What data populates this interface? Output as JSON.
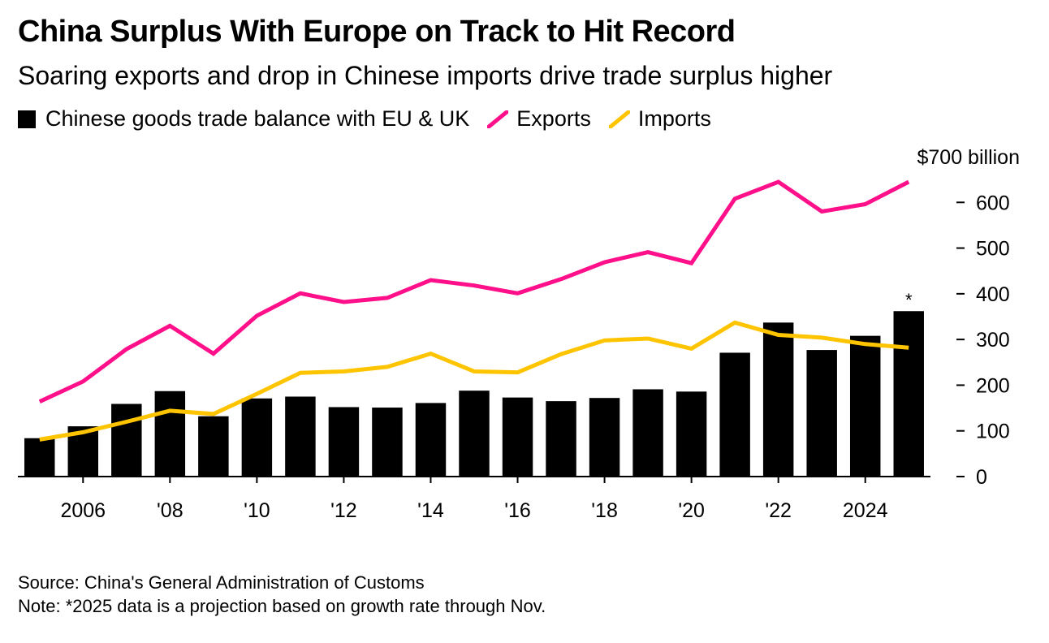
{
  "header": {
    "title": "China Surplus With Europe on Track to Hit Record",
    "subtitle": "Soaring exports and drop in Chinese imports drive trade surplus higher"
  },
  "legend": {
    "balance": "Chinese goods trade balance with EU & UK",
    "exports": "Exports",
    "imports": "Imports"
  },
  "colors": {
    "balance": "#000000",
    "exports": "#ff0f8a",
    "imports": "#ffc400"
  },
  "footer": {
    "source": "Source: China's General Administration of Customs",
    "note": "Note: *2025 data is a projection based on growth rate through Nov."
  },
  "chart_data": {
    "type": "bar",
    "title": "China Surplus With Europe on Track to Hit Record",
    "subtitle": "Soaring exports and drop in Chinese imports drive trade surplus higher",
    "x": [
      2005,
      2006,
      2007,
      2008,
      2009,
      2010,
      2011,
      2012,
      2013,
      2014,
      2015,
      2016,
      2017,
      2018,
      2019,
      2020,
      2021,
      2022,
      2023,
      2024,
      2025
    ],
    "x_tick_labels": [
      {
        "year": 2006,
        "label": "2006"
      },
      {
        "year": 2008,
        "label": "'08"
      },
      {
        "year": 2010,
        "label": "'10"
      },
      {
        "year": 2012,
        "label": "'12"
      },
      {
        "year": 2014,
        "label": "'14"
      },
      {
        "year": 2016,
        "label": "'16"
      },
      {
        "year": 2018,
        "label": "'18"
      },
      {
        "year": 2020,
        "label": "'20"
      },
      {
        "year": 2022,
        "label": "'22"
      },
      {
        "year": 2024,
        "label": "2024"
      }
    ],
    "y_tick_labels": [
      {
        "value": 0,
        "label": "0"
      },
      {
        "value": 100,
        "label": "100"
      },
      {
        "value": 200,
        "label": "200"
      },
      {
        "value": 300,
        "label": "300"
      },
      {
        "value": 400,
        "label": "400"
      },
      {
        "value": 500,
        "label": "500"
      },
      {
        "value": 600,
        "label": "600"
      },
      {
        "value": 700,
        "label": "$700 billion"
      }
    ],
    "ylim": [
      0,
      700
    ],
    "grid": false,
    "legend_position": "top-left",
    "y_axis_side": "right",
    "series": [
      {
        "name": "Chinese goods trade balance with EU & UK",
        "type": "bar",
        "values": [
          84,
          110,
          159,
          187,
          132,
          171,
          175,
          152,
          151,
          161,
          188,
          173,
          165,
          172,
          191,
          186,
          271,
          337,
          277,
          308,
          362
        ]
      },
      {
        "name": "Exports",
        "type": "line",
        "values": [
          164,
          208,
          279,
          330,
          269,
          352,
          401,
          382,
          391,
          430,
          418,
          401,
          432,
          469,
          491,
          467,
          608,
          645,
          580,
          596,
          645
        ]
      },
      {
        "name": "Imports",
        "type": "line",
        "values": [
          81,
          97,
          120,
          144,
          137,
          181,
          227,
          230,
          240,
          269,
          230,
          228,
          268,
          298,
          302,
          280,
          337,
          310,
          304,
          290,
          282
        ]
      }
    ],
    "annotations": [
      {
        "year": 2025,
        "text": "*"
      }
    ]
  }
}
